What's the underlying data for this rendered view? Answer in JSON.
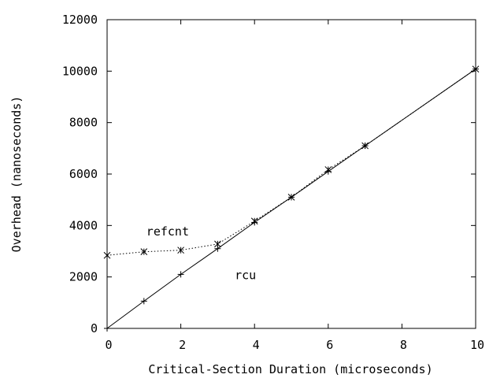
{
  "chart_data": {
    "type": "line",
    "title": "",
    "xlabel": "Critical-Section Duration (microseconds)",
    "ylabel": "Overhead (nanoseconds)",
    "xlim": [
      0,
      10
    ],
    "ylim": [
      0,
      12000
    ],
    "x_ticks": [
      "0",
      "2",
      "4",
      "6",
      "8",
      "10"
    ],
    "y_ticks": [
      "0",
      "2000",
      "4000",
      "6000",
      "8000",
      "10000",
      "12000"
    ],
    "grid": false,
    "legend": "none",
    "series": [
      {
        "name": "rcu",
        "style": "solid",
        "marker": "+",
        "color": "#000000",
        "x": [
          0,
          1,
          2,
          3,
          4,
          5,
          6,
          7,
          10
        ],
        "y": [
          0,
          1060,
          2100,
          3100,
          4120,
          5100,
          6100,
          7100,
          10080
        ]
      },
      {
        "name": "refcnt",
        "style": "dotted",
        "marker": "x",
        "color": "#000000",
        "x": [
          0,
          1,
          2,
          3,
          4,
          5,
          6,
          7,
          10
        ],
        "y": [
          2840,
          2980,
          3040,
          3280,
          4170,
          5100,
          6170,
          7100,
          10080
        ]
      }
    ],
    "annotations": [
      {
        "text": "refcnt",
        "x": 1.0,
        "y": 3650
      },
      {
        "text": "rcu",
        "x": 3.4,
        "y": 1950
      }
    ]
  }
}
